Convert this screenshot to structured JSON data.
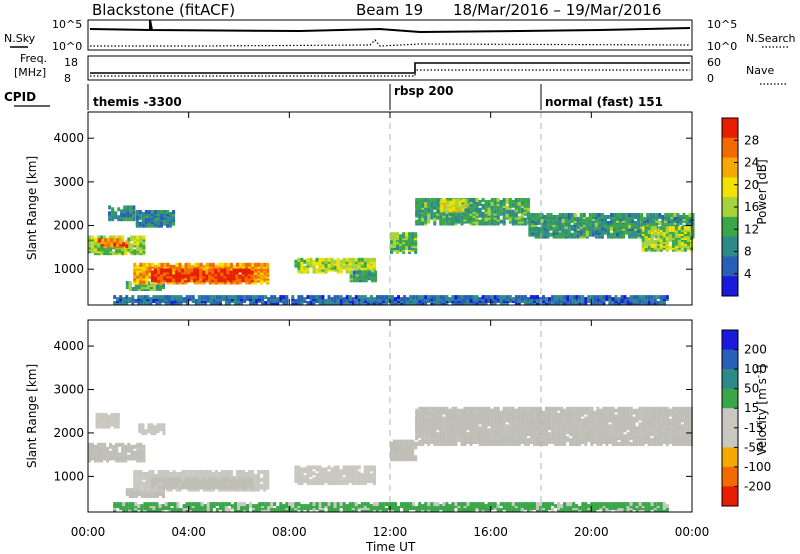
{
  "header": {
    "station": "Blackstone (fitACF)",
    "beam": "Beam 19",
    "dates": "18/Mar/2016 – 19/Mar/2016"
  },
  "panels": {
    "nsky_label": "N.Sky",
    "nsky_ticks": [
      "10^5",
      "10^0"
    ],
    "nsearch_label": "N.Search",
    "nsearch_ticks": [
      "10^5",
      "10^0"
    ],
    "freq_label": "Freq.",
    "freq_unit": "[MHz]",
    "freq_ticks": [
      "18",
      "8"
    ],
    "nave_label": "Nave",
    "nave_ticks": [
      "60",
      "0"
    ],
    "cpid_label": "CPID",
    "cpid_segments": [
      {
        "label": "themis -3300",
        "start_hour": 0
      },
      {
        "label": "rbsp 200",
        "start_hour": 12.0
      },
      {
        "label": "normal (fast) 151",
        "start_hour": 18.0
      }
    ]
  },
  "colors": {
    "power_scale": [
      "#1a1adc",
      "#2a5fb8",
      "#2e8a8a",
      "#3aa64a",
      "#a6d23a",
      "#f2e200",
      "#f5a800",
      "#f26a00",
      "#e81e00"
    ],
    "velocity_scale": [
      "#e81e00",
      "#f26a00",
      "#f5a800",
      "#c8c8c0",
      "#c8c8c0",
      "#3aa64a",
      "#2e8a8a",
      "#2a5fb8",
      "#1a1adc"
    ],
    "ground_scatter": "#bfbfb8"
  },
  "chart_data": [
    {
      "type": "heatmap",
      "name": "power",
      "xlabel": "Time UT",
      "ylabel": "Slant Range [km]",
      "xlim": [
        0,
        24
      ],
      "ylim": [
        180,
        4600
      ],
      "x_tick_labels": [
        "00:00",
        "04:00",
        "08:00",
        "12:00",
        "16:00",
        "20:00",
        "00:00"
      ],
      "x_ticks": [
        0,
        4,
        8,
        12,
        16,
        20,
        24
      ],
      "y_ticks": [
        1000,
        2000,
        3000,
        4000
      ],
      "colorbar_label": "Power [dB]",
      "colorbar_ticks": [
        "28",
        "24",
        "20",
        "16",
        "12",
        "8",
        "4"
      ],
      "colorbar_range": [
        0,
        30
      ],
      "blobs": [
        {
          "t0": 0.0,
          "t1": 2.2,
          "r0": 1320,
          "r1": 1720,
          "v": 14
        },
        {
          "t0": 0.4,
          "t1": 1.5,
          "r0": 1480,
          "r1": 1650,
          "v": 24
        },
        {
          "t0": 0.8,
          "t1": 1.8,
          "r0": 2100,
          "r1": 2400,
          "v": 8
        },
        {
          "t0": 1.9,
          "t1": 3.4,
          "r0": 1950,
          "r1": 2300,
          "v": 8
        },
        {
          "t0": 1.5,
          "t1": 3.0,
          "r0": 500,
          "r1": 640,
          "v": 12
        },
        {
          "t0": 1.8,
          "t1": 7.2,
          "r0": 650,
          "r1": 1100,
          "v": 22
        },
        {
          "t0": 2.5,
          "t1": 6.5,
          "r0": 700,
          "r1": 950,
          "v": 27
        },
        {
          "t0": 8.2,
          "t1": 11.4,
          "r0": 900,
          "r1": 1200,
          "v": 16
        },
        {
          "t0": 10.4,
          "t1": 11.4,
          "r0": 700,
          "r1": 900,
          "v": 10
        },
        {
          "t0": 12.0,
          "t1": 13.0,
          "r0": 1350,
          "r1": 1800,
          "v": 13
        },
        {
          "t0": 13.0,
          "t1": 17.5,
          "r0": 2000,
          "r1": 2550,
          "v": 11
        },
        {
          "t0": 14.0,
          "t1": 15.0,
          "r0": 2300,
          "r1": 2550,
          "v": 17
        },
        {
          "t0": 17.5,
          "t1": 24.0,
          "r0": 1700,
          "r1": 2200,
          "v": 10
        },
        {
          "t0": 22.0,
          "t1": 24.0,
          "r0": 1400,
          "r1": 1900,
          "v": 15
        },
        {
          "t0": 1.0,
          "t1": 23.0,
          "r0": 180,
          "r1": 330,
          "v": 6
        }
      ]
    },
    {
      "type": "heatmap",
      "name": "velocity",
      "xlabel": "Time UT",
      "ylabel": "Slant Range [km]",
      "xlim": [
        0,
        24
      ],
      "ylim": [
        180,
        4600
      ],
      "x_tick_labels": [
        "00:00",
        "04:00",
        "08:00",
        "12:00",
        "16:00",
        "20:00",
        "00:00"
      ],
      "x_ticks": [
        0,
        4,
        8,
        12,
        16,
        20,
        24
      ],
      "y_ticks": [
        1000,
        2000,
        3000,
        4000
      ],
      "colorbar_label": "Velocity [m s^-1]",
      "colorbar_ticks": [
        "200",
        "100",
        "50",
        "15",
        "-15",
        "-50",
        "-100",
        "-200"
      ],
      "colorbar_range": [
        -250,
        250
      ],
      "blobs": [
        {
          "t0": 0.0,
          "t1": 2.2,
          "r0": 1320,
          "r1": 1720,
          "v": 0
        },
        {
          "t0": 0.3,
          "t1": 1.2,
          "r0": 2100,
          "r1": 2400,
          "v": -40
        },
        {
          "t0": 2.0,
          "t1": 3.0,
          "r0": 1950,
          "r1": 2150,
          "v": -60
        },
        {
          "t0": 1.5,
          "t1": 3.0,
          "r0": 500,
          "r1": 640,
          "v": 0
        },
        {
          "t0": 1.8,
          "t1": 7.2,
          "r0": 650,
          "r1": 1100,
          "v": -40
        },
        {
          "t0": 2.5,
          "t1": 6.5,
          "r0": 700,
          "r1": 900,
          "v": 0
        },
        {
          "t0": 8.2,
          "t1": 11.4,
          "r0": 800,
          "r1": 1200,
          "v": -60
        },
        {
          "t0": 12.0,
          "t1": 13.0,
          "r0": 1350,
          "r1": 1800,
          "v": 0
        },
        {
          "t0": 13.0,
          "t1": 24.0,
          "r0": 1700,
          "r1": 2550,
          "v": 0
        },
        {
          "t0": 1.0,
          "t1": 23.0,
          "r0": 180,
          "r1": 330,
          "v": 30
        }
      ]
    }
  ]
}
